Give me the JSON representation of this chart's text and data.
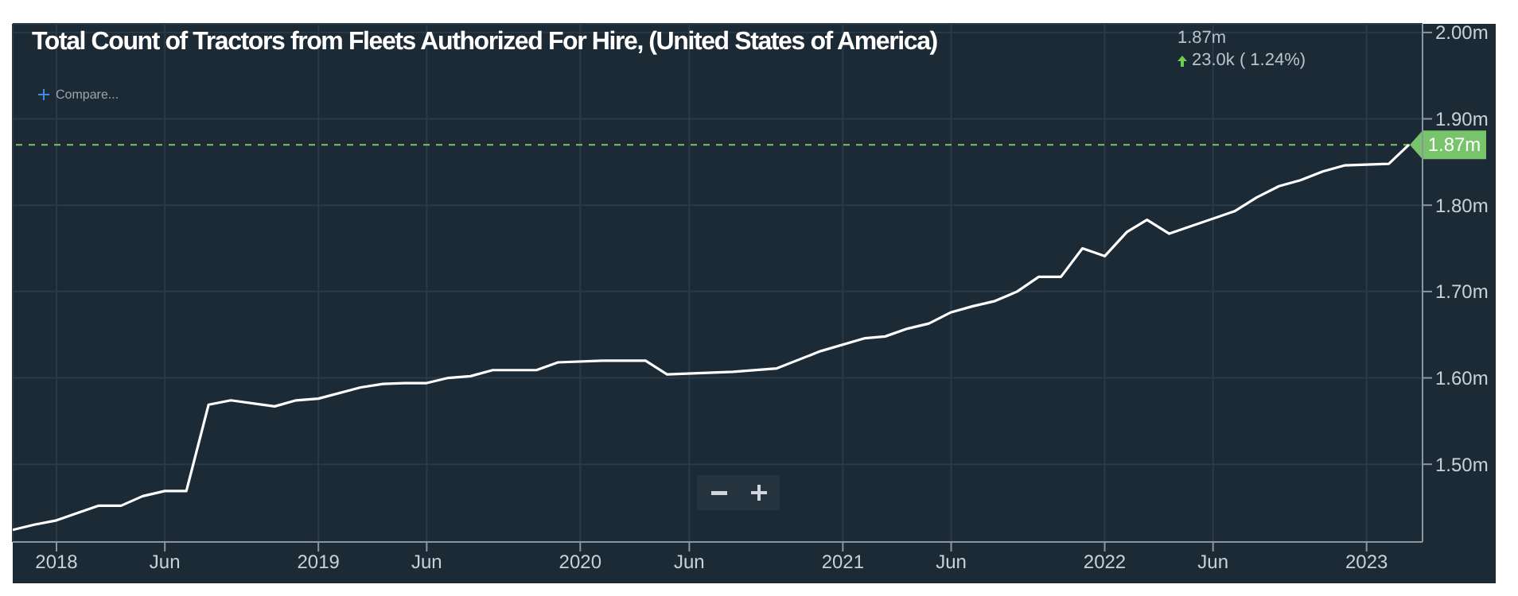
{
  "chart_data": {
    "type": "line",
    "title": "Total Count of Tractors from Fleets Authorized For Hire, (United States of America)",
    "x": [
      "2017-11",
      "2017-12",
      "2018-01",
      "2018-02",
      "2018-03",
      "2018-04",
      "2018-05",
      "2018-06",
      "2018-07",
      "2018-08",
      "2018-09",
      "2018-11",
      "2018-12",
      "2019-01",
      "2019-03",
      "2019-04",
      "2019-05",
      "2019-06",
      "2019-07",
      "2019-08",
      "2019-09",
      "2019-11",
      "2019-12",
      "2020-02",
      "2020-04",
      "2020-05",
      "2020-08",
      "2020-10",
      "2020-12",
      "2021-02",
      "2021-03",
      "2021-04",
      "2021-05",
      "2021-06",
      "2021-07",
      "2021-08",
      "2021-09",
      "2021-10",
      "2021-11",
      "2021-12",
      "2022-01",
      "2022-02",
      "2022-03",
      "2022-04",
      "2022-07",
      "2022-08",
      "2022-09",
      "2022-10",
      "2022-11",
      "2022-12",
      "2023-02",
      "2023-03"
    ],
    "series": [
      {
        "color": "#ffffff",
        "values": [
          1.424,
          1.43,
          1.435,
          1.444,
          1.452,
          1.452,
          1.463,
          1.469,
          1.469,
          1.569,
          1.574,
          1.567,
          1.574,
          1.576,
          1.589,
          1.593,
          1.594,
          1.594,
          1.6,
          1.602,
          1.609,
          1.609,
          1.618,
          1.62,
          1.62,
          1.604,
          1.607,
          1.611,
          1.631,
          1.646,
          1.648,
          1.657,
          1.663,
          1.676,
          1.683,
          1.689,
          1.7,
          1.717,
          1.717,
          1.75,
          1.741,
          1.769,
          1.783,
          1.767,
          1.793,
          1.809,
          1.822,
          1.829,
          1.839,
          1.846,
          1.848,
          1.87
        ]
      }
    ],
    "xlim": [
      "2017-11-01",
      "2023-03-20"
    ],
    "xticks": [
      {
        "value": "2018-01-01",
        "label": "2018"
      },
      {
        "value": "2018-06-01",
        "label": "Jun"
      },
      {
        "value": "2019-01-01",
        "label": "2019"
      },
      {
        "value": "2019-06-01",
        "label": "Jun"
      },
      {
        "value": "2020-01-01",
        "label": "2020"
      },
      {
        "value": "2020-06-01",
        "label": "Jun"
      },
      {
        "value": "2021-01-01",
        "label": "2021"
      },
      {
        "value": "2021-06-01",
        "label": "Jun"
      },
      {
        "value": "2022-01-01",
        "label": "2022"
      },
      {
        "value": "2022-06-01",
        "label": "Jun"
      },
      {
        "value": "2023-01-01",
        "label": "2023"
      }
    ],
    "ylim": [
      1.41,
      2.01
    ],
    "yticks": [
      {
        "value": 1.5,
        "label": "1.50m"
      },
      {
        "value": 1.6,
        "label": "1.60m"
      },
      {
        "value": 1.7,
        "label": "1.70m"
      },
      {
        "value": 1.8,
        "label": "1.80m"
      },
      {
        "value": 1.9,
        "label": "1.90m"
      },
      {
        "value": 2.0,
        "label": "2.00m"
      }
    ],
    "ref_lines": [
      {
        "axis": "y",
        "value": 1.87,
        "label": "1.87m",
        "color": "#78c46a",
        "line_style": "dashed"
      }
    ],
    "annotations": [
      "1.87m",
      "23.0k ( 1.24%)",
      "Compare..."
    ],
    "grid": true
  }
}
